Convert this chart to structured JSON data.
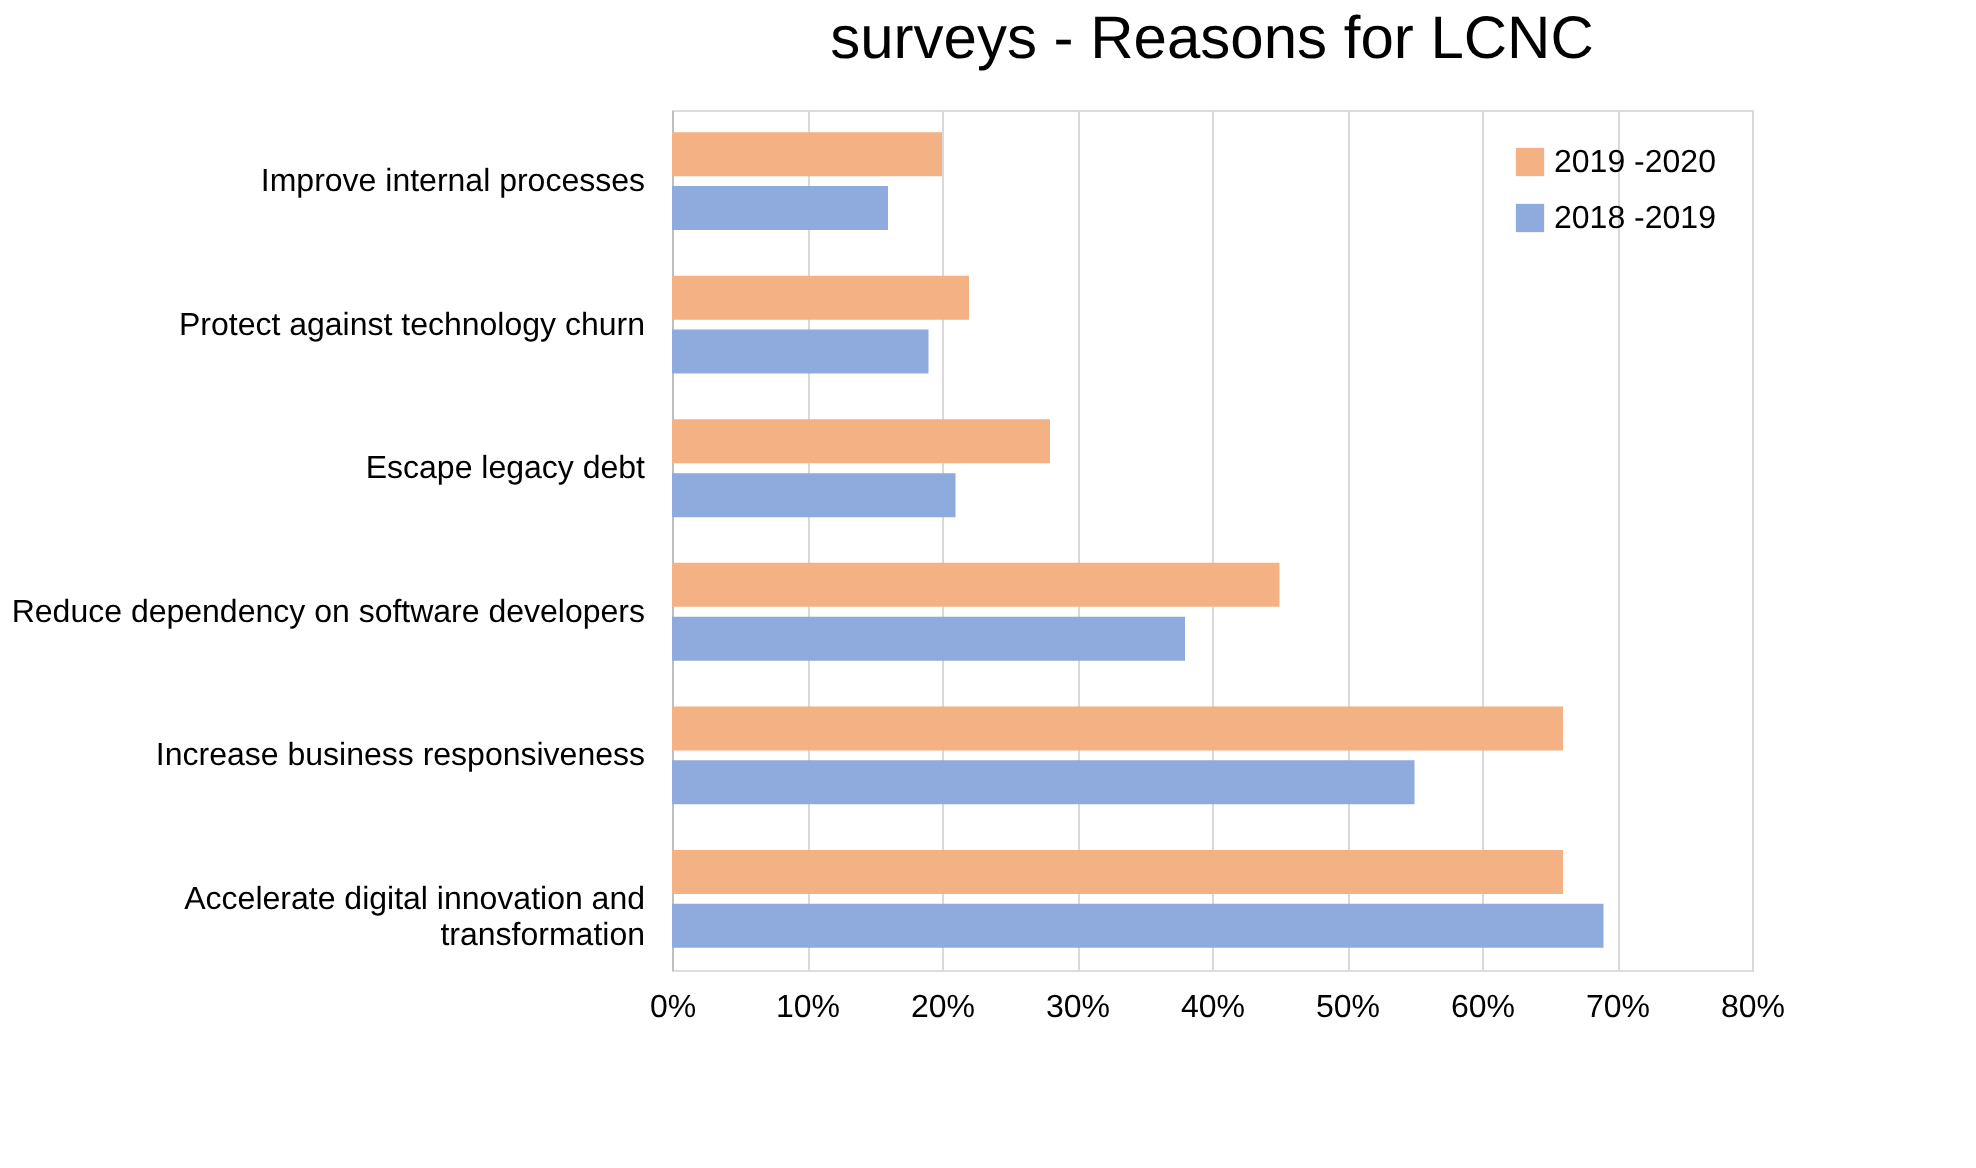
{
  "chart_data": {
    "type": "bar",
    "orientation": "horizontal",
    "title": "surveys - Reasons for LCNC",
    "categories": [
      "Improve internal processes",
      "Protect against technology churn",
      "Escape legacy debt",
      "Reduce dependency on software developers",
      "Increase business responsiveness",
      "Accelerate digital innovation and transformation"
    ],
    "series": [
      {
        "name": "2019 -2020",
        "color": "#f4b183",
        "values": [
          20,
          22,
          28,
          45,
          66,
          66
        ]
      },
      {
        "name": "2018 -2019",
        "color": "#8faadc",
        "values": [
          16,
          19,
          21,
          38,
          55,
          69
        ]
      }
    ],
    "xlim": [
      0,
      80
    ],
    "xticks": [
      {
        "value": 0,
        "label": "0%"
      },
      {
        "value": 10,
        "label": "10%"
      },
      {
        "value": 20,
        "label": "20%"
      },
      {
        "value": 30,
        "label": "30%"
      },
      {
        "value": 40,
        "label": "40%"
      },
      {
        "value": 50,
        "label": "50%"
      },
      {
        "value": 60,
        "label": "60%"
      },
      {
        "value": 70,
        "label": "70%"
      },
      {
        "value": 80,
        "label": "80%"
      }
    ],
    "grid": "x",
    "legend": "top right"
  }
}
